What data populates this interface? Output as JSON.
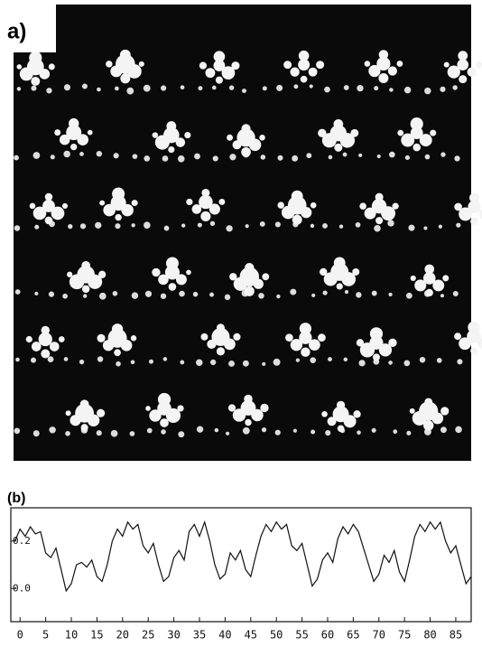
{
  "panel_a": {
    "label": "a)"
  },
  "chart_data": {
    "type": "line",
    "title": "(b)",
    "x": [
      -1,
      0,
      1,
      2,
      3,
      4,
      5,
      6,
      7,
      8,
      9,
      10,
      11,
      12,
      13,
      14,
      15,
      16,
      17,
      18,
      19,
      20,
      21,
      22,
      23,
      24,
      25,
      26,
      27,
      28,
      29,
      30,
      31,
      32,
      33,
      34,
      35,
      36,
      37,
      38,
      39,
      40,
      41,
      42,
      43,
      44,
      45,
      46,
      47,
      48,
      49,
      50,
      51,
      52,
      53,
      54,
      55,
      56,
      57,
      58,
      59,
      60,
      61,
      62,
      63,
      64,
      65,
      66,
      67,
      68,
      69,
      70,
      71,
      72,
      73,
      74,
      75,
      76,
      77,
      78,
      79,
      80,
      81,
      82,
      83,
      84,
      85,
      86,
      87,
      88
    ],
    "series": [
      {
        "color": "#111111",
        "values": [
          0.2,
          0.25,
          0.22,
          0.26,
          0.23,
          0.24,
          0.15,
          0.13,
          0.17,
          0.08,
          -0.01,
          0.02,
          0.1,
          0.11,
          0.09,
          0.12,
          0.05,
          0.03,
          0.1,
          0.2,
          0.25,
          0.22,
          0.28,
          0.25,
          0.27,
          0.18,
          0.15,
          0.19,
          0.1,
          0.03,
          0.05,
          0.13,
          0.16,
          0.12,
          0.24,
          0.27,
          0.22,
          0.28,
          0.2,
          0.1,
          0.04,
          0.06,
          0.15,
          0.12,
          0.16,
          0.08,
          0.05,
          0.14,
          0.22,
          0.27,
          0.24,
          0.28,
          0.25,
          0.27,
          0.18,
          0.16,
          0.19,
          0.1,
          0.01,
          0.04,
          0.12,
          0.15,
          0.11,
          0.21,
          0.26,
          0.23,
          0.27,
          0.24,
          0.17,
          0.1,
          0.03,
          0.06,
          0.14,
          0.11,
          0.16,
          0.07,
          0.03,
          0.12,
          0.22,
          0.27,
          0.24,
          0.28,
          0.25,
          0.28,
          0.2,
          0.15,
          0.18,
          0.1,
          0.02,
          0.05
        ]
      }
    ],
    "xlim": [
      -1.8,
      88
    ],
    "ylim": [
      -0.14,
      0.34
    ],
    "xticks": [
      0,
      5,
      10,
      15,
      20,
      25,
      30,
      35,
      40,
      45,
      50,
      55,
      60,
      65,
      70,
      75,
      80,
      85
    ],
    "yticks": [
      {
        "value": 0,
        "label": "0.0"
      },
      0.2
    ]
  }
}
